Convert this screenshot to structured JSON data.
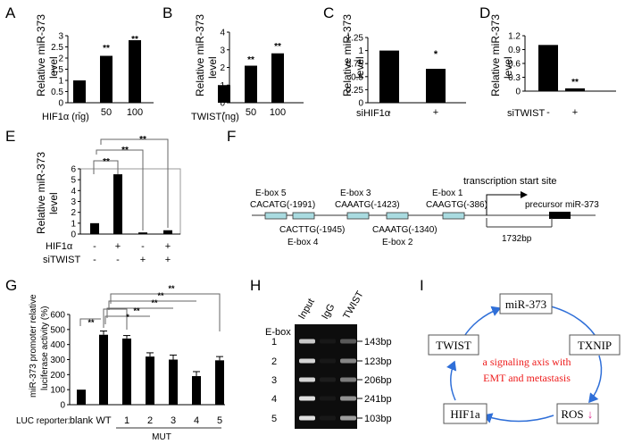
{
  "panels": {
    "A": {
      "letter": "A",
      "ylabel1": "Relative miR-373",
      "ylabel2": "level",
      "xlabel": "HIF1α (ng)",
      "sig": [
        "**",
        "**"
      ]
    },
    "B": {
      "letter": "B",
      "ylabel1": "Relative miR-373",
      "ylabel2": "level",
      "xlabel": "TWIST(ng)",
      "sig": [
        "**",
        "**"
      ]
    },
    "C": {
      "letter": "C",
      "ylabel1": "Relative miR-373",
      "ylabel2": "level",
      "xlabel": "siHIF1α",
      "sig": [
        "*"
      ]
    },
    "D": {
      "letter": "D",
      "ylabel1": "Relative miR-373",
      "ylabel2": "level",
      "xlabel": "siTWIST",
      "sig": [
        "**"
      ]
    },
    "E": {
      "letter": "E",
      "ylabel1": "Relative miR-373",
      "ylabel2": "level",
      "row1_label": "HIF1α",
      "row2_label": "siTWIST",
      "sig": [
        "**",
        "**",
        "**"
      ]
    },
    "F": {
      "letter": "F",
      "tss": "transcription start site",
      "precursor": "precursor miR-373",
      "bp": "1732bp",
      "eboxes_top": [
        {
          "name": "E-box 5",
          "seq": "CACATG(-1991)"
        },
        {
          "name": "E-box 3",
          "seq": "CAAATG(-1423)"
        },
        {
          "name": "E-box 1",
          "seq": "CAAGTG(-386)"
        }
      ],
      "eboxes_bottom": [
        {
          "seq": "CACTTG(-1945)",
          "name": "E-box 4"
        },
        {
          "seq": "CAAATG(-1340)",
          "name": "E-box 2"
        }
      ]
    },
    "G": {
      "letter": "G",
      "ylabel1": "miR-373 promoter relative",
      "ylabel2": "luciferase activity (%)",
      "reporter_label": "LUC reporter:",
      "mut_label": "MUT",
      "sig": [
        "**",
        "*",
        "**",
        "**",
        "**",
        "**"
      ]
    },
    "H": {
      "letter": "H",
      "col_labels": [
        "Input",
        "IgG",
        "TWIST"
      ],
      "row_header": "E-box",
      "rows": [
        {
          "n": "1",
          "bp": "143bp"
        },
        {
          "n": "2",
          "bp": "123bp"
        },
        {
          "n": "3",
          "bp": "206bp"
        },
        {
          "n": "4",
          "bp": "241bp"
        },
        {
          "n": "5",
          "bp": "103bp"
        }
      ]
    },
    "I": {
      "letter": "I",
      "nodes": [
        "miR-373",
        "TXNIP",
        "ROS",
        "HIF1a",
        "TWIST"
      ],
      "ros_arrow": "↓",
      "center1": "a signaling axis with",
      "center2": "EMT and metastasis"
    }
  },
  "chart_data": [
    {
      "panel": "A",
      "type": "bar",
      "categories": [
        "-",
        "50",
        "100"
      ],
      "values": [
        1,
        2.1,
        2.8
      ],
      "ylim": [
        0,
        3
      ],
      "yticks": [
        "0",
        "0.5",
        "1",
        "1.5",
        "2",
        "2.5",
        "3"
      ]
    },
    {
      "panel": "B",
      "type": "bar",
      "categories": [
        "-",
        "50",
        "100"
      ],
      "values": [
        1,
        2.1,
        2.8
      ],
      "ylim": [
        0,
        4
      ],
      "yticks": [
        "0",
        "1",
        "2",
        "3",
        "4"
      ]
    },
    {
      "panel": "C",
      "type": "bar",
      "categories": [
        "-",
        "+"
      ],
      "values": [
        1,
        0.65
      ],
      "ylim": [
        0,
        1.25
      ],
      "yticks": [
        "0",
        "0.25",
        "0.5",
        "0.75",
        "1",
        "1.25"
      ]
    },
    {
      "panel": "D",
      "type": "bar",
      "categories": [
        "-",
        "+"
      ],
      "values": [
        1,
        0.06
      ],
      "ylim": [
        0,
        1.2
      ],
      "yticks": [
        "0",
        "0.3",
        "0.6",
        "0.9",
        "1.2"
      ]
    },
    {
      "panel": "E",
      "type": "bar",
      "row1": [
        "-",
        "+",
        "-",
        "+"
      ],
      "row2": [
        "-",
        "-",
        "+",
        "+"
      ],
      "values": [
        1,
        5.5,
        0.15,
        0.35
      ],
      "ylim": [
        0,
        6
      ],
      "yticks": [
        "0",
        "1",
        "2",
        "3",
        "4",
        "5",
        "6"
      ]
    },
    {
      "panel": "G",
      "type": "bar",
      "categories": [
        "blank",
        "WT",
        "1",
        "2",
        "3",
        "4",
        "5"
      ],
      "values": [
        100,
        465,
        440,
        320,
        300,
        190,
        295
      ],
      "errors": [
        0,
        25,
        20,
        25,
        30,
        30,
        25
      ],
      "ylim": [
        0,
        600
      ],
      "yticks": [
        "0",
        "100",
        "200",
        "300",
        "400",
        "500",
        "600"
      ]
    }
  ]
}
